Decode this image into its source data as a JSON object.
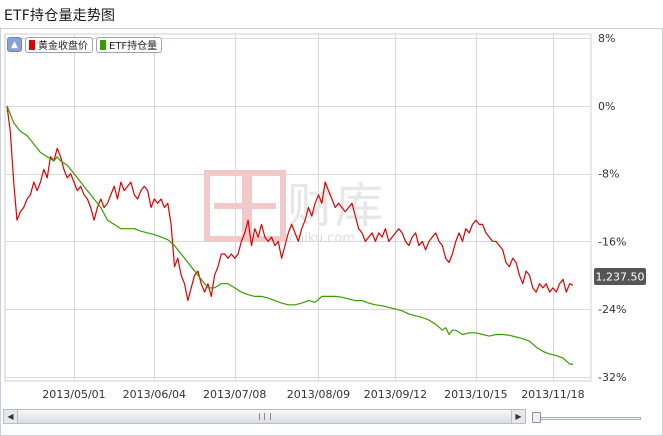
{
  "title": "ETF持仓量走势图",
  "legend": {
    "toggle_icon": "▲",
    "items": [
      {
        "label": "黄金收盘价",
        "color": "#e00000"
      },
      {
        "label": "ETF持仓量",
        "color": "#3a9b00"
      }
    ]
  },
  "watermark": {
    "text": "财库",
    "subtext": "coiku.com"
  },
  "last_value_label": "1,237.50",
  "chart_data": {
    "type": "line",
    "x_tick_labels": [
      "2013/05/01",
      "2013/06/04",
      "2013/07/08",
      "2013/08/09",
      "2013/09/12",
      "2013/10/15",
      "2013/11/18"
    ],
    "y_tick_labels": [
      "8%",
      "0%",
      "-8%",
      "-16%",
      "-24%",
      "-32%"
    ],
    "y_ticks": [
      8,
      0,
      -8,
      -16,
      -24,
      -32
    ],
    "ylim": [
      -32.5,
      8.5
    ],
    "x_count": 170,
    "x_tick_indices": [
      20,
      44,
      68,
      93,
      116,
      140,
      163
    ],
    "grid": true,
    "legend_position": "top-left",
    "series": [
      {
        "name": "黄金收盘价",
        "color": "#e00000",
        "points": [
          [
            0,
            0
          ],
          [
            1,
            -3
          ],
          [
            2,
            -9
          ],
          [
            3,
            -13.5
          ],
          [
            4,
            -12.5
          ],
          [
            5,
            -12
          ],
          [
            6,
            -11
          ],
          [
            7,
            -10.5
          ],
          [
            8,
            -9
          ],
          [
            9,
            -10
          ],
          [
            10,
            -9
          ],
          [
            11,
            -7.5
          ],
          [
            12,
            -8.5
          ],
          [
            13,
            -6
          ],
          [
            14,
            -6.5
          ],
          [
            15,
            -5
          ],
          [
            16,
            -6
          ],
          [
            17,
            -7.5
          ],
          [
            18,
            -8.5
          ],
          [
            19,
            -8
          ],
          [
            20,
            -9
          ],
          [
            21,
            -10
          ],
          [
            22,
            -9.5
          ],
          [
            23,
            -10.5
          ],
          [
            24,
            -11
          ],
          [
            25,
            -12
          ],
          [
            26,
            -13.5
          ],
          [
            27,
            -12
          ],
          [
            28,
            -11
          ],
          [
            29,
            -12
          ],
          [
            30,
            -11.5
          ],
          [
            31,
            -10.5
          ],
          [
            32,
            -9.5
          ],
          [
            33,
            -11
          ],
          [
            34,
            -9
          ],
          [
            35,
            -10
          ],
          [
            36,
            -9.5
          ],
          [
            37,
            -9
          ],
          [
            38,
            -10.5
          ],
          [
            39,
            -11
          ],
          [
            40,
            -10
          ],
          [
            41,
            -9.5
          ],
          [
            42,
            -10
          ],
          [
            43,
            -12
          ],
          [
            44,
            -11
          ],
          [
            45,
            -11.5
          ],
          [
            46,
            -11
          ],
          [
            47,
            -12
          ],
          [
            48,
            -11.5
          ],
          [
            49,
            -14
          ],
          [
            50,
            -19
          ],
          [
            51,
            -18
          ],
          [
            52,
            -20
          ],
          [
            53,
            -21
          ],
          [
            54,
            -23
          ],
          [
            55,
            -21.5
          ],
          [
            56,
            -20
          ],
          [
            57,
            -19.5
          ],
          [
            58,
            -21
          ],
          [
            59,
            -22
          ],
          [
            60,
            -21
          ],
          [
            61,
            -22.5
          ],
          [
            62,
            -20
          ],
          [
            63,
            -19
          ],
          [
            64,
            -17.5
          ],
          [
            65,
            -17.5
          ],
          [
            66,
            -18
          ],
          [
            67,
            -17.5
          ],
          [
            68,
            -18
          ],
          [
            69,
            -17.5
          ],
          [
            70,
            -16
          ],
          [
            71,
            -15
          ],
          [
            72,
            -13.5
          ],
          [
            73,
            -16.5
          ],
          [
            74,
            -14.5
          ],
          [
            75,
            -15.5
          ],
          [
            76,
            -14
          ],
          [
            77,
            -15.5
          ],
          [
            78,
            -16
          ],
          [
            79,
            -15.5
          ],
          [
            80,
            -16.5
          ],
          [
            81,
            -16
          ],
          [
            82,
            -18
          ],
          [
            83,
            -16.5
          ],
          [
            84,
            -15
          ],
          [
            85,
            -14
          ],
          [
            86,
            -15
          ],
          [
            87,
            -16
          ],
          [
            88,
            -14.5
          ],
          [
            89,
            -13.5
          ],
          [
            90,
            -12
          ],
          [
            91,
            -13
          ],
          [
            92,
            -11.5
          ],
          [
            93,
            -10.5
          ],
          [
            94,
            -11.5
          ],
          [
            95,
            -9
          ],
          [
            96,
            -10
          ],
          [
            97,
            -11
          ],
          [
            98,
            -12
          ],
          [
            99,
            -11.5
          ],
          [
            100,
            -12
          ],
          [
            101,
            -12.5
          ],
          [
            102,
            -12
          ],
          [
            103,
            -11.5
          ],
          [
            104,
            -13
          ],
          [
            105,
            -14.5
          ],
          [
            106,
            -15
          ],
          [
            107,
            -16
          ],
          [
            108,
            -15.5
          ],
          [
            109,
            -15
          ],
          [
            110,
            -16
          ],
          [
            111,
            -15
          ],
          [
            112,
            -15.5
          ],
          [
            113,
            -14.5
          ],
          [
            114,
            -16
          ],
          [
            115,
            -15.5
          ],
          [
            116,
            -15
          ],
          [
            117,
            -14.5
          ],
          [
            118,
            -15
          ],
          [
            119,
            -16
          ],
          [
            120,
            -16.5
          ],
          [
            121,
            -15.5
          ],
          [
            122,
            -15
          ],
          [
            123,
            -16.5
          ],
          [
            124,
            -16
          ],
          [
            125,
            -17
          ],
          [
            126,
            -16
          ],
          [
            127,
            -15.5
          ],
          [
            128,
            -15
          ],
          [
            129,
            -16
          ],
          [
            130,
            -16.5
          ],
          [
            131,
            -18
          ],
          [
            132,
            -18.5
          ],
          [
            133,
            -17.5
          ],
          [
            134,
            -16
          ],
          [
            135,
            -15
          ],
          [
            136,
            -16
          ],
          [
            137,
            -14.5
          ],
          [
            138,
            -15
          ],
          [
            139,
            -14
          ],
          [
            140,
            -13.5
          ],
          [
            141,
            -14
          ],
          [
            142,
            -14
          ],
          [
            143,
            -15
          ],
          [
            144,
            -15.5
          ],
          [
            145,
            -16
          ],
          [
            146,
            -16
          ],
          [
            147,
            -16.5
          ],
          [
            148,
            -17
          ],
          [
            149,
            -18.5
          ],
          [
            150,
            -19
          ],
          [
            151,
            -18
          ],
          [
            152,
            -18.5
          ],
          [
            153,
            -20
          ],
          [
            154,
            -21
          ],
          [
            155,
            -19.5
          ],
          [
            156,
            -20
          ],
          [
            157,
            -21.5
          ],
          [
            158,
            -22
          ],
          [
            159,
            -21
          ],
          [
            160,
            -21.5
          ],
          [
            161,
            -21
          ],
          [
            162,
            -22
          ],
          [
            163,
            -21.5
          ],
          [
            164,
            -22
          ],
          [
            165,
            -21
          ],
          [
            166,
            -20.5
          ],
          [
            167,
            -22
          ],
          [
            168,
            -21
          ],
          [
            169,
            -21.2
          ]
        ]
      },
      {
        "name": "ETF持仓量",
        "color": "#3a9b00",
        "points": [
          [
            0,
            0
          ],
          [
            2,
            -2
          ],
          [
            4,
            -3
          ],
          [
            6,
            -3.5
          ],
          [
            8,
            -4.5
          ],
          [
            10,
            -5.5
          ],
          [
            12,
            -6
          ],
          [
            14,
            -6.5
          ],
          [
            15,
            -6
          ],
          [
            16,
            -6.5
          ],
          [
            18,
            -7
          ],
          [
            20,
            -8
          ],
          [
            22,
            -9
          ],
          [
            24,
            -10
          ],
          [
            26,
            -11
          ],
          [
            28,
            -12
          ],
          [
            30,
            -13.5
          ],
          [
            32,
            -14
          ],
          [
            34,
            -14.5
          ],
          [
            36,
            -14.5
          ],
          [
            38,
            -14.5
          ],
          [
            40,
            -14.8
          ],
          [
            42,
            -15
          ],
          [
            44,
            -15.2
          ],
          [
            46,
            -15.5
          ],
          [
            48,
            -15.8
          ],
          [
            50,
            -16.5
          ],
          [
            52,
            -17.5
          ],
          [
            54,
            -18.5
          ],
          [
            56,
            -19.5
          ],
          [
            58,
            -20.5
          ],
          [
            60,
            -21.5
          ],
          [
            62,
            -21.5
          ],
          [
            64,
            -21
          ],
          [
            66,
            -21
          ],
          [
            68,
            -21.5
          ],
          [
            70,
            -22
          ],
          [
            72,
            -22.3
          ],
          [
            74,
            -22.5
          ],
          [
            76,
            -22.5
          ],
          [
            78,
            -22.7
          ],
          [
            80,
            -23
          ],
          [
            82,
            -23.3
          ],
          [
            84,
            -23.5
          ],
          [
            86,
            -23.5
          ],
          [
            88,
            -23.3
          ],
          [
            90,
            -23
          ],
          [
            92,
            -23.2
          ],
          [
            94,
            -22.5
          ],
          [
            96,
            -22.5
          ],
          [
            98,
            -22.5
          ],
          [
            100,
            -22.6
          ],
          [
            102,
            -22.8
          ],
          [
            104,
            -23
          ],
          [
            106,
            -23
          ],
          [
            108,
            -23.3
          ],
          [
            110,
            -23.5
          ],
          [
            112,
            -23.6
          ],
          [
            114,
            -23.8
          ],
          [
            116,
            -24
          ],
          [
            118,
            -24.2
          ],
          [
            120,
            -24.6
          ],
          [
            122,
            -24.8
          ],
          [
            124,
            -25
          ],
          [
            126,
            -25.3
          ],
          [
            128,
            -25.8
          ],
          [
            130,
            -26.5
          ],
          [
            131,
            -26.2
          ],
          [
            132,
            -27
          ],
          [
            133,
            -26.5
          ],
          [
            134,
            -26.5
          ],
          [
            136,
            -27
          ],
          [
            138,
            -26.8
          ],
          [
            140,
            -26.8
          ],
          [
            142,
            -27
          ],
          [
            144,
            -27.2
          ],
          [
            146,
            -27
          ],
          [
            148,
            -27
          ],
          [
            150,
            -27.1
          ],
          [
            152,
            -27.3
          ],
          [
            154,
            -27.5
          ],
          [
            156,
            -27.8
          ],
          [
            158,
            -28.5
          ],
          [
            160,
            -29
          ],
          [
            162,
            -29.3
          ],
          [
            164,
            -29.5
          ],
          [
            166,
            -29.8
          ],
          [
            168,
            -30.5
          ],
          [
            169,
            -30.5
          ]
        ]
      }
    ]
  }
}
